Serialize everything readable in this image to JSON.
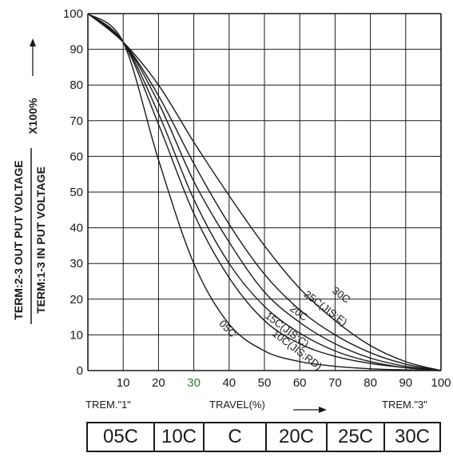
{
  "chart_data": {
    "type": "line",
    "y_label_top": "TERM:2-3 OUT PUT VOLTAGE",
    "y_label_bottom": "TERM:1-3 IN PUT VOLTAGE",
    "y_suffix": "X100%",
    "x_label": "TRAVEL(%)",
    "x_left_label": "TREM.\"1\"",
    "x_right_label": "TREM.\"3\"",
    "xlim": [
      0,
      100
    ],
    "ylim": [
      0,
      100
    ],
    "x_ticks": [
      10,
      20,
      30,
      40,
      50,
      60,
      70,
      80,
      90,
      100
    ],
    "y_ticks": [
      0,
      10,
      20,
      30,
      40,
      50,
      60,
      70,
      80,
      90,
      100
    ],
    "grid": true,
    "series": [
      {
        "name": "05C",
        "x": [
          0,
          10,
          20,
          30,
          40,
          50,
          60,
          70,
          80,
          90,
          100
        ],
        "y": [
          100,
          92,
          59,
          30,
          13,
          5.5,
          2.5,
          1.2,
          0.5,
          0.2,
          0
        ]
      },
      {
        "name": "10C(JIS:RD)",
        "x": [
          0,
          10,
          20,
          30,
          40,
          50,
          60,
          70,
          80,
          90,
          100
        ],
        "y": [
          100,
          92,
          69,
          44,
          26,
          14,
          7.5,
          4,
          2,
          0.8,
          0
        ]
      },
      {
        "name": "15C(JIS:C)",
        "x": [
          0,
          10,
          20,
          30,
          40,
          50,
          60,
          70,
          80,
          90,
          100
        ],
        "y": [
          100,
          92,
          72,
          48,
          30,
          18,
          10.5,
          5.5,
          2.5,
          0.8,
          0
        ]
      },
      {
        "name": "20C",
        "x": [
          0,
          10,
          20,
          30,
          40,
          50,
          60,
          70,
          80,
          90,
          100
        ],
        "y": [
          100,
          92,
          75,
          53,
          36,
          22,
          13.5,
          7.5,
          3.5,
          1.2,
          0
        ]
      },
      {
        "name": "25C(JIS:E)",
        "x": [
          0,
          10,
          20,
          30,
          40,
          50,
          60,
          70,
          80,
          90,
          100
        ],
        "y": [
          100,
          92,
          77,
          58,
          41,
          27,
          17,
          10,
          5,
          1.8,
          0
        ]
      },
      {
        "name": "30C",
        "x": [
          0,
          10,
          20,
          30,
          40,
          50,
          60,
          70,
          80,
          90,
          100
        ],
        "y": [
          100,
          92,
          80,
          64,
          49,
          35,
          23,
          14,
          7,
          2.5,
          0
        ]
      }
    ]
  },
  "curve_labels": [
    {
      "text": "05C",
      "x": 37,
      "y": 13,
      "rotate": 46
    },
    {
      "text": "10C(JIS:RD)",
      "x": 52,
      "y": 10,
      "rotate": 37
    },
    {
      "text": "15C(JIS:C)",
      "x": 50,
      "y": 15,
      "rotate": 37
    },
    {
      "text": "20C",
      "x": 57,
      "y": 17,
      "rotate": 37
    },
    {
      "text": "25C(JIS:E)",
      "x": 61,
      "y": 21,
      "rotate": 37
    },
    {
      "text": "30C",
      "x": 69,
      "y": 22,
      "rotate": 37
    }
  ],
  "curve_types": [
    "05C",
    "10C",
    "C",
    "20C",
    "25C",
    "30C"
  ]
}
